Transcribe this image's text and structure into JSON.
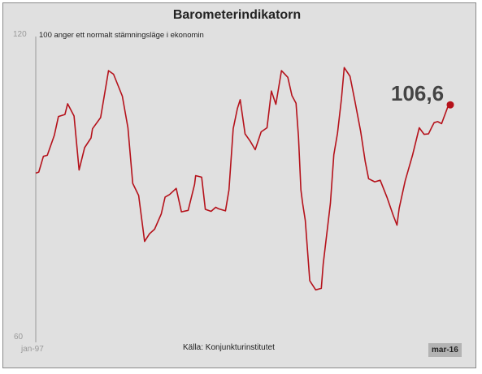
{
  "chart_data": {
    "type": "line",
    "title": "Barometerindikatorn",
    "subtitle": "100 anger ett normalt stämningsläge i ekonomin",
    "source": "Källa: Konjunkturinstitutet",
    "ylim": [
      60,
      120
    ],
    "y_tick_labels": [
      "120",
      "60"
    ],
    "x_start_label": "jan-97",
    "x_end_label": "mar-16",
    "last_value_label": "106,6",
    "last_value": 106.6,
    "grid": false,
    "series": [
      {
        "color": "#b5121b",
        "x": [
          0,
          1.66,
          4.24,
          6.42,
          10.27,
          12.58,
          16.17,
          17.67,
          21.22,
          24.02,
          27.12,
          30.66,
          31.47,
          36.01,
          40.36,
          43.16,
          48.04,
          51.13,
          53.78,
          57.08,
          60.39,
          63.1,
          65.94,
          69.62,
          71.74,
          74.24,
          77.93,
          80.82,
          84.57,
          88.1,
          88.72,
          92.03,
          94.07,
          97.26,
          99.86,
          101.45,
          105.24,
          107.21,
          109.53,
          111.9,
          113.41,
          116.11,
          118.91,
          121.76,
          125.05,
          128.31,
          130.72,
          133.2,
          136.31,
          139.83,
          142.13,
          144.42,
          145.77,
          147.11,
          148.08,
          149.55,
          152.02,
          155.34,
          158.43,
          159.47,
          163.46,
          165.38,
          167.41,
          169.63,
          171.15,
          174.37,
          176.89,
          180.24,
          182.72,
          184.66,
          188.05,
          191.13,
          194.84,
          198.32,
          200.42,
          201.63,
          204.95,
          209.02,
          212.77,
          215.5,
          217.92,
          219.73,
          221.02,
          222.95,
          225.19,
          228.52,
          230.84
        ],
        "y": [
          93.2,
          93.4,
          96.5,
          96.7,
          100.6,
          104.3,
          104.7,
          106.8,
          104.4,
          93.8,
          98.2,
          100.1,
          101.9,
          104.1,
          113.3,
          112.6,
          108.3,
          102.1,
          91.2,
          88.8,
          79.8,
          81.3,
          82.2,
          85.2,
          88.5,
          89.0,
          90.2,
          85.6,
          85.9,
          91.0,
          92.7,
          92.4,
          86.1,
          85.7,
          86.5,
          86.2,
          85.8,
          89.9,
          101.9,
          105.9,
          107.6,
          100.9,
          99.5,
          97.8,
          101.3,
          102.1,
          109.3,
          106.7,
          113.3,
          112.0,
          108.4,
          106.9,
          100.4,
          89.9,
          87.2,
          83.9,
          72.1,
          70.3,
          70.6,
          75.3,
          87.3,
          96.8,
          101.0,
          107.8,
          113.9,
          112.2,
          107.7,
          101.4,
          95.6,
          92.1,
          91.5,
          91.8,
          88.5,
          84.9,
          83.0,
          86.3,
          91.7,
          96.7,
          102.1,
          100.8,
          100.9,
          102.2,
          103.1,
          103.3,
          102.9,
          106.1,
          106.6
        ]
      }
    ]
  }
}
